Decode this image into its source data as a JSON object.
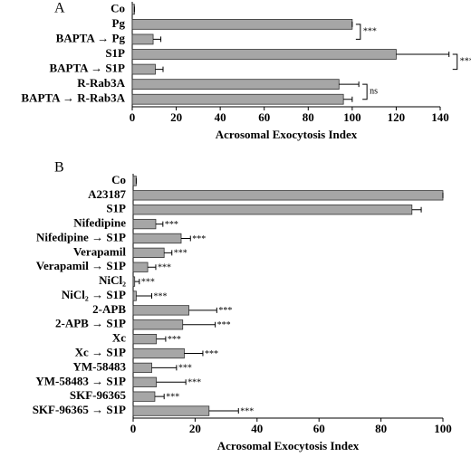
{
  "chart_data": [
    {
      "type": "bar",
      "orientation": "horizontal",
      "panel": "A",
      "color": "#a6a6a6",
      "annotation_style": "bracket",
      "categories": [
        "Co",
        "Pg",
        "BAPTA → Pg",
        "S1P",
        "BAPTA → S1P",
        "R-Rab3A",
        "BAPTA → R-Rab3A"
      ],
      "values": [
        1,
        100,
        9.5,
        120,
        10.5,
        94,
        96
      ],
      "errors": [
        0,
        0,
        3.5,
        24,
        3.5,
        9,
        4
      ],
      "annotations": [
        null,
        "***",
        null,
        "***",
        null,
        "ns",
        null
      ],
      "xlabel": "Acrosomal Exocytosis Index",
      "xlim": [
        0,
        140
      ],
      "xticks": [
        0,
        20,
        40,
        60,
        80,
        100,
        120,
        140
      ]
    },
    {
      "type": "bar",
      "orientation": "horizontal",
      "panel": "B",
      "color": "#a6a6a6",
      "annotation_style": "inline",
      "categories": [
        "Co",
        "A23187",
        "S1P",
        "Nifedipine",
        "Nifedipine → S1P",
        "Verapamil",
        "Verapamil → S1P",
        "NiCl₂",
        "NiCl₂ → S1P",
        "2-APB",
        "2-APB → S1P",
        "Xc",
        "Xc → S1P",
        "YM-58483",
        "YM-58483 → S1P",
        "SKF-96365",
        "SKF-96365 → S1P"
      ],
      "values": [
        1,
        100,
        90,
        7.3,
        15.5,
        10,
        4.7,
        0.5,
        1,
        18,
        16,
        7.5,
        16.5,
        6,
        7.5,
        7,
        24.5
      ],
      "errors": [
        0,
        0,
        3,
        2.3,
        3,
        2.5,
        2.6,
        1.5,
        5,
        9,
        10.5,
        3,
        6,
        8,
        9.5,
        3,
        9.5
      ],
      "annotations": [
        null,
        null,
        null,
        "***",
        "***",
        "***",
        "***",
        "***",
        "***",
        "***",
        "***",
        "***",
        "***",
        "***",
        "***",
        "***",
        "***"
      ],
      "xlabel": "Acrosomal Exocytosis Index",
      "xlim": [
        0,
        100
      ],
      "xticks": [
        0,
        20,
        40,
        60,
        80,
        100
      ]
    }
  ]
}
